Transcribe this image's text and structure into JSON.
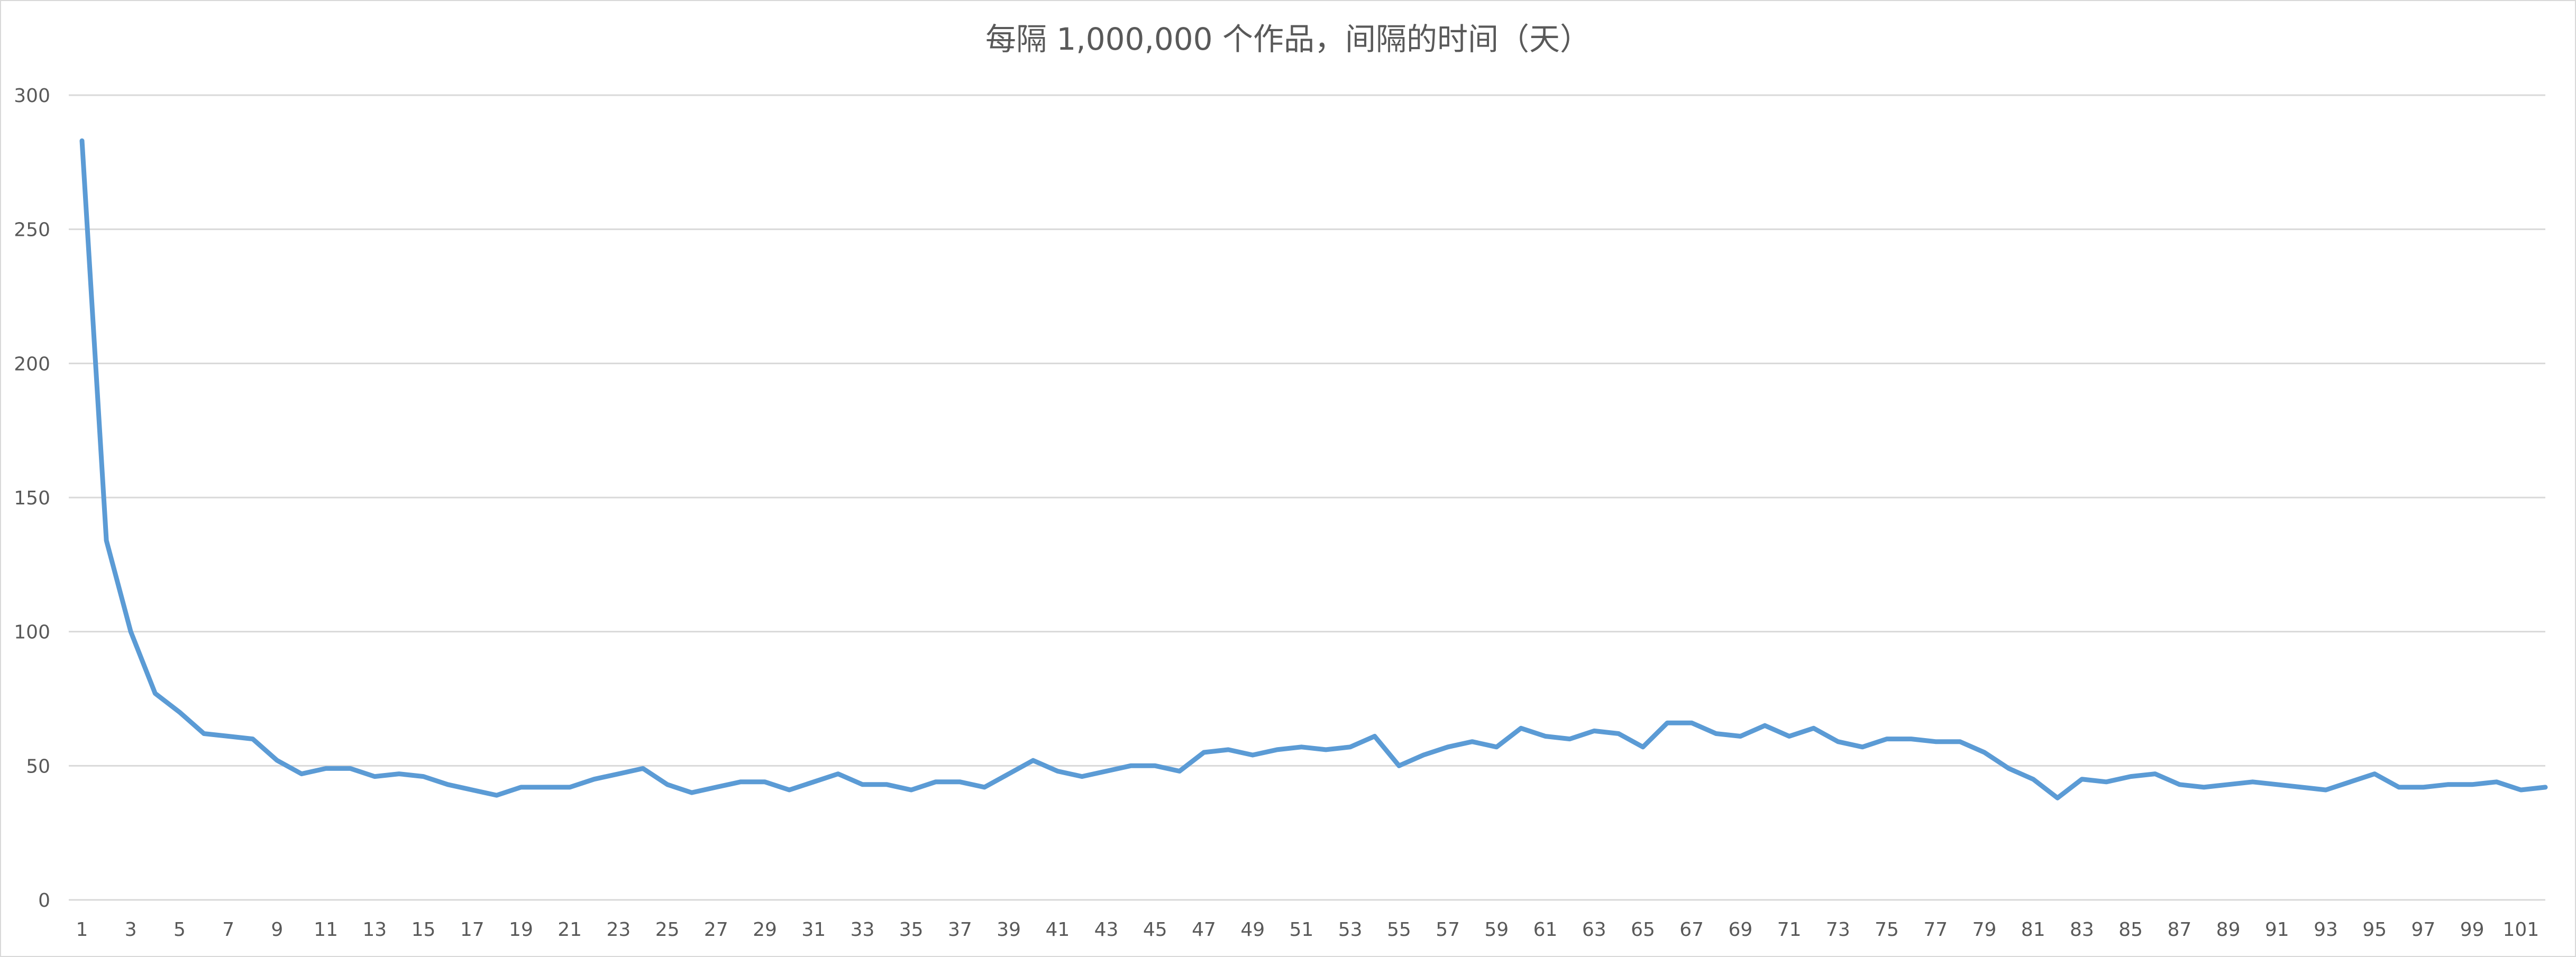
{
  "chart_data": {
    "type": "line",
    "title": "每隔 1,000,000 个作品，间隔的时间（天）",
    "xlabel": "",
    "ylabel": "",
    "ylim": [
      0,
      300
    ],
    "yticks": [
      0,
      50,
      100,
      150,
      200,
      250,
      300
    ],
    "xlim": [
      1,
      102
    ],
    "xticks": [
      1,
      3,
      5,
      7,
      9,
      11,
      13,
      15,
      17,
      19,
      21,
      23,
      25,
      27,
      29,
      31,
      33,
      35,
      37,
      39,
      41,
      43,
      45,
      47,
      49,
      51,
      53,
      55,
      57,
      59,
      61,
      63,
      65,
      67,
      69,
      71,
      73,
      75,
      77,
      79,
      81,
      83,
      85,
      87,
      89,
      91,
      93,
      95,
      97,
      99,
      101
    ],
    "grid": true,
    "legend": "none",
    "series": [
      {
        "color": "#5b9bd5",
        "x": [
          1,
          2,
          3,
          4,
          5,
          6,
          7,
          8,
          9,
          10,
          11,
          12,
          13,
          14,
          15,
          16,
          17,
          18,
          19,
          20,
          21,
          22,
          23,
          24,
          25,
          26,
          27,
          28,
          29,
          30,
          31,
          32,
          33,
          34,
          35,
          36,
          37,
          38,
          39,
          40,
          41,
          42,
          43,
          44,
          45,
          46,
          47,
          48,
          49,
          50,
          51,
          52,
          53,
          54,
          55,
          56,
          57,
          58,
          59,
          60,
          61,
          62,
          63,
          64,
          65,
          66,
          67,
          68,
          69,
          70,
          71,
          72,
          73,
          74,
          75,
          76,
          77,
          78,
          79,
          80,
          81,
          82,
          83,
          84,
          85,
          86,
          87,
          88,
          89,
          90,
          91,
          92,
          93,
          94,
          95,
          96,
          97,
          98,
          99,
          100,
          101,
          102
        ],
        "values": [
          283,
          134,
          100,
          77,
          70,
          62,
          61,
          60,
          52,
          47,
          49,
          49,
          46,
          47,
          46,
          43,
          41,
          39,
          42,
          42,
          42,
          45,
          47,
          49,
          43,
          40,
          42,
          44,
          44,
          41,
          44,
          47,
          43,
          43,
          41,
          44,
          44,
          42,
          47,
          52,
          48,
          46,
          48,
          50,
          50,
          48,
          55,
          56,
          54,
          56,
          57,
          56,
          57,
          61,
          50,
          54,
          57,
          59,
          57,
          64,
          61,
          60,
          63,
          62,
          57,
          66,
          66,
          62,
          61,
          65,
          61,
          64,
          59,
          57,
          60,
          60,
          59,
          59,
          55,
          49,
          45,
          38,
          45,
          44,
          46,
          47,
          43,
          42,
          43,
          44,
          43,
          42,
          41,
          44,
          47,
          42,
          42,
          43,
          43,
          44,
          41,
          42
        ]
      }
    ]
  }
}
